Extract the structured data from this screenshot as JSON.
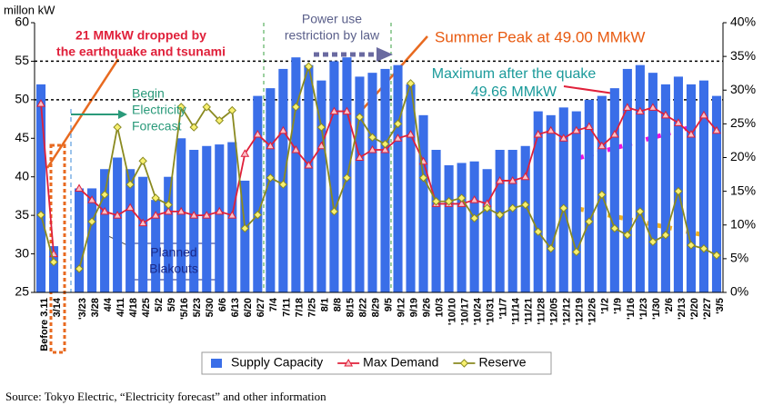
{
  "chart_data": {
    "type": "bar_line",
    "y_axis_label": "millon kW",
    "categories": [
      "Before 3.11",
      "3/14",
      null,
      "'3/23",
      "3/28",
      "4/4",
      "4/11",
      "4/18",
      "4/25",
      "5/2",
      "5/9",
      "'5/16",
      "5/23",
      "5/30",
      "6/6",
      "6/13",
      "6/20",
      "6/27",
      "7/4",
      "7/11",
      "7/18",
      "7/25",
      "8/1",
      "8/8",
      "8/15",
      "8/22",
      "8/29",
      "9/5",
      "9/12",
      "9/19",
      "9/26",
      "10/3",
      "'10/10",
      "'10/17",
      "'10/24",
      "'10/31",
      "'11/7",
      "'11/14",
      "'11/21",
      "'11/28",
      "'12/05",
      "'12/12",
      "'12/19",
      "'12/26",
      "'1/2",
      "'1/9",
      "'1/16",
      "'1/23",
      "'1/30",
      "'2/6",
      "'2/13",
      "'2/20",
      "'2/27",
      "'3/5"
    ],
    "series": [
      {
        "name": "Supply Capacity",
        "kind": "bar",
        "color": "#3a6ee8",
        "values": [
          52,
          31,
          null,
          38.5,
          38.5,
          41,
          42.5,
          41,
          40,
          37,
          40,
          45,
          43.5,
          44,
          44.2,
          44.5,
          39.5,
          50.5,
          51.5,
          54,
          55.5,
          54.5,
          52.5,
          55,
          55.5,
          53,
          53.5,
          54,
          54.5,
          52,
          48,
          43.5,
          41.5,
          41.8,
          42,
          41,
          43.5,
          43.5,
          44,
          48.5,
          48,
          49,
          48.5,
          50,
          50.5,
          51.5,
          54,
          54.5,
          53.5,
          52,
          53,
          52,
          52.5,
          50.5
        ]
      },
      {
        "name": "Max Demand",
        "kind": "line",
        "marker": "triangle",
        "color": "#e0203a",
        "values": [
          49.5,
          30,
          null,
          38.5,
          37,
          35.5,
          35,
          36,
          34,
          35,
          35.5,
          35.5,
          35,
          35,
          35.5,
          35,
          43,
          45.5,
          44,
          46,
          43.5,
          41.5,
          44,
          48.5,
          48.5,
          42.5,
          43.5,
          43.5,
          45,
          45.5,
          42,
          36.5,
          36.5,
          36.5,
          37,
          36.5,
          39.5,
          39.5,
          40,
          45.5,
          46,
          45,
          46,
          46.5,
          44,
          45.5,
          49,
          48.5,
          49,
          48,
          47,
          45.5,
          48,
          46
        ]
      },
      {
        "name": "Reserve",
        "kind": "line",
        "marker": "diamond",
        "axis": "y2",
        "color": "#8a8a20",
        "values": [
          11.5,
          4.5,
          null,
          3.5,
          10.5,
          14.5,
          24.5,
          16,
          19.5,
          14,
          13,
          27.5,
          24.5,
          27.5,
          25.5,
          27,
          9.5,
          11.5,
          17,
          16,
          27.5,
          33.5,
          24.5,
          12,
          17,
          26,
          23,
          22,
          25,
          31,
          17,
          13.5,
          13.5,
          14,
          11,
          12.5,
          11.5,
          12.5,
          13,
          9,
          6.5,
          12.5,
          6,
          10.5,
          14.5,
          9.5,
          8.5,
          12,
          7.5,
          8.5,
          15,
          7,
          6.5,
          5.5
        ]
      }
    ],
    "ylim": [
      25,
      60
    ],
    "yticks": [
      25,
      30,
      35,
      40,
      45,
      50,
      55,
      60
    ],
    "y2lim": [
      0,
      40
    ],
    "y2ticks": [
      {
        "value": 0,
        "label": "0%"
      },
      {
        "value": 5,
        "label": "5%"
      },
      {
        "value": 10,
        "label": "10%"
      },
      {
        "value": 15,
        "label": "15%"
      },
      {
        "value": 20,
        "label": "20%"
      },
      {
        "value": 25,
        "label": "25%"
      },
      {
        "value": 30,
        "label": "30%"
      },
      {
        "value": 35,
        "label": "35%"
      },
      {
        "value": 40,
        "label": "40%"
      }
    ],
    "reference_lines": [
      50,
      55
    ],
    "legend": "bottom",
    "annotations": [
      {
        "lines": [
          "21 MMkW dropped by",
          "the earthquake and tsunami"
        ],
        "color": "#e0203a"
      },
      {
        "lines": [
          "Power use",
          "restriction by law"
        ],
        "color": "#5a5f8a"
      },
      {
        "lines": [
          "Summer Peak at 49.00 MMkW"
        ],
        "color": "#e85a10"
      },
      {
        "lines": [
          "Maximum after the quake",
          "49.66 MMkW"
        ],
        "color": "#1a9a9a"
      },
      {
        "lines": [
          "Begin",
          "Electricity",
          "Forecast"
        ],
        "color": "#2a9a7a"
      },
      {
        "lines": [
          "Planned",
          "Blakouts"
        ],
        "color": "#1a2a8a"
      }
    ],
    "source": "Source: Tokyo Electric, “Electricity forecast” and other information"
  }
}
